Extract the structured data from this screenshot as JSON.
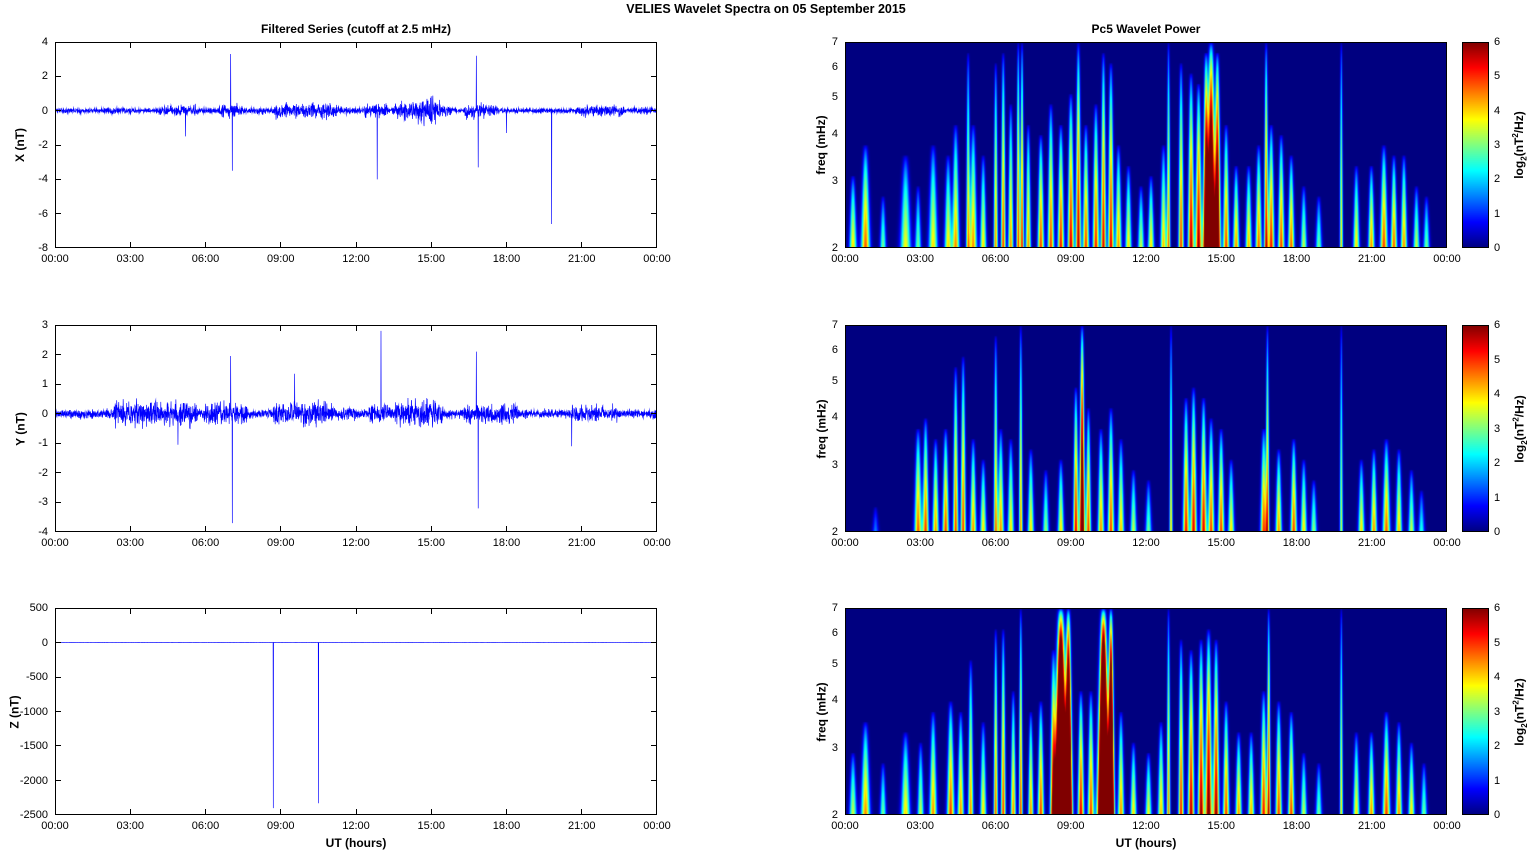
{
  "figure_title": "VELIES Wavelet Spectra on 05 September 2015",
  "x_axis": {
    "label": "UT (hours)",
    "ticks": [
      "00:00",
      "03:00",
      "06:00",
      "09:00",
      "12:00",
      "15:00",
      "18:00",
      "21:00",
      "00:00"
    ],
    "range_hours": [
      0,
      24
    ]
  },
  "line_color": "#0000FF",
  "colorbar": {
    "ticks": [
      0,
      1,
      2,
      3,
      4,
      5,
      6
    ],
    "clim": [
      0,
      6
    ],
    "label_plain": "log2(nT2/Hz)",
    "label_parts": {
      "prefix": "log",
      "sub": "2",
      "mid": "(nT",
      "sup": "2",
      "suffix": "/Hz)"
    }
  },
  "chart_data": [
    {
      "id": "x-filtered-series",
      "type": "line",
      "title": "Filtered Series (cutoff at 2.5 mHz)",
      "ylabel": "X (nT)",
      "ylim": [
        -8,
        4
      ],
      "yticks": [
        4,
        2,
        0,
        -2,
        -4,
        -6,
        -8
      ],
      "baseline_noise": 0.06,
      "burst_format": "[t_start_h, t_end_h, sigma_nT]",
      "noise_bursts": [
        [
          2.0,
          3.0,
          0.08
        ],
        [
          4.2,
          5.6,
          0.14
        ],
        [
          6.6,
          7.4,
          0.18
        ],
        [
          7.8,
          8.4,
          0.1
        ],
        [
          8.8,
          11.2,
          0.2
        ],
        [
          11.4,
          12.2,
          0.1
        ],
        [
          12.4,
          13.2,
          0.18
        ],
        [
          13.6,
          14.4,
          0.25
        ],
        [
          14.4,
          15.3,
          0.4
        ],
        [
          15.3,
          15.8,
          0.15
        ],
        [
          16.4,
          17.6,
          0.2
        ],
        [
          20.8,
          22.6,
          0.16
        ],
        [
          23.0,
          23.8,
          0.1
        ]
      ],
      "spike_format": "[t_hours, nT]",
      "spikes": [
        [
          5.2,
          -1.5
        ],
        [
          7.0,
          3.3
        ],
        [
          7.07,
          -3.5
        ],
        [
          12.85,
          -4.0
        ],
        [
          16.8,
          3.2
        ],
        [
          16.87,
          -3.3
        ],
        [
          18.0,
          -1.3
        ],
        [
          19.8,
          -6.6
        ]
      ]
    },
    {
      "id": "y-filtered-series",
      "type": "line",
      "ylabel": "Y (nT)",
      "ylim": [
        -4,
        3
      ],
      "yticks": [
        3,
        2,
        1,
        0,
        -1,
        -2,
        -3,
        -4
      ],
      "baseline_noise": 0.07,
      "noise_bursts": [
        [
          2.4,
          5.6,
          0.2
        ],
        [
          6.0,
          7.6,
          0.18
        ],
        [
          8.8,
          11.0,
          0.2
        ],
        [
          11.0,
          12.0,
          0.1
        ],
        [
          12.6,
          13.4,
          0.15
        ],
        [
          13.6,
          15.4,
          0.22
        ],
        [
          16.4,
          18.4,
          0.16
        ],
        [
          20.6,
          22.4,
          0.14
        ]
      ],
      "spikes": [
        [
          4.9,
          -1.05
        ],
        [
          7.0,
          1.95
        ],
        [
          7.07,
          -3.7
        ],
        [
          9.55,
          1.35
        ],
        [
          13.0,
          2.8
        ],
        [
          16.8,
          2.1
        ],
        [
          16.87,
          -3.2
        ],
        [
          20.6,
          -1.1
        ]
      ]
    },
    {
      "id": "z-filtered-series",
      "type": "line",
      "ylabel": "Z (nT)",
      "ylim": [
        -2500,
        500
      ],
      "yticks": [
        500,
        0,
        -500,
        -1000,
        -1500,
        -2000,
        -2500
      ],
      "baseline_noise": 0.4,
      "noise_bursts": [],
      "spikes": [
        [
          8.7,
          -2400
        ],
        [
          10.5,
          -2330
        ]
      ]
    },
    {
      "id": "x-wavelet-power",
      "type": "heatmap",
      "title": "Pc5 Wavelet Power",
      "ylabel": "freq (mHz)",
      "f_mhz": [
        2,
        7
      ],
      "yscale": "log",
      "yticks": [
        7,
        6,
        5,
        4,
        3,
        2
      ],
      "clim": [
        0,
        6
      ],
      "plume_format": "[t_hours, height_frac_of_log_freq_axis, peak_log2_power, width_hours]",
      "plumes": [
        [
          0.3,
          0.35,
          4,
          0.12
        ],
        [
          0.8,
          0.5,
          4.8,
          0.15
        ],
        [
          1.5,
          0.25,
          3,
          0.1
        ],
        [
          2.4,
          0.45,
          3.8,
          0.18
        ],
        [
          2.9,
          0.3,
          3,
          0.1
        ],
        [
          3.5,
          0.5,
          4,
          0.15
        ],
        [
          4.1,
          0.45,
          4,
          0.12
        ],
        [
          4.4,
          0.6,
          4.5,
          0.12
        ],
        [
          4.9,
          0.95,
          4.2,
          0.06
        ],
        [
          5.1,
          0.6,
          4.5,
          0.12
        ],
        [
          5.5,
          0.45,
          4,
          0.1
        ],
        [
          6.0,
          0.9,
          4.5,
          0.06
        ],
        [
          6.3,
          0.95,
          5,
          0.07
        ],
        [
          6.6,
          0.7,
          4.5,
          0.08
        ],
        [
          6.9,
          1.0,
          5,
          0.05
        ],
        [
          7.05,
          1.0,
          5.2,
          0.05
        ],
        [
          7.3,
          0.6,
          4.5,
          0.08
        ],
        [
          7.8,
          0.55,
          5,
          0.1
        ],
        [
          8.2,
          0.7,
          5,
          0.1
        ],
        [
          8.6,
          0.6,
          5.3,
          0.1
        ],
        [
          9.0,
          0.75,
          5.6,
          0.1
        ],
        [
          9.3,
          1.0,
          5.8,
          0.08
        ],
        [
          9.6,
          0.6,
          5,
          0.1
        ],
        [
          10.0,
          0.7,
          5.2,
          0.1
        ],
        [
          10.3,
          0.95,
          5.5,
          0.08
        ],
        [
          10.6,
          0.9,
          5.5,
          0.09
        ],
        [
          10.9,
          0.5,
          4.5,
          0.1
        ],
        [
          11.3,
          0.4,
          4,
          0.1
        ],
        [
          11.8,
          0.3,
          3.5,
          0.1
        ],
        [
          12.2,
          0.35,
          4,
          0.1
        ],
        [
          12.7,
          0.5,
          4.2,
          0.1
        ],
        [
          12.9,
          1.0,
          4.5,
          0.05
        ],
        [
          13.4,
          0.9,
          5,
          0.08
        ],
        [
          13.8,
          0.85,
          5.8,
          0.1
        ],
        [
          14.1,
          0.8,
          6,
          0.1
        ],
        [
          14.4,
          0.95,
          8,
          0.1
        ],
        [
          14.6,
          1.0,
          10,
          0.15
        ],
        [
          14.85,
          0.95,
          8,
          0.1
        ],
        [
          15.2,
          0.6,
          5,
          0.1
        ],
        [
          15.6,
          0.4,
          4.5,
          0.1
        ],
        [
          16.1,
          0.4,
          4.3,
          0.1
        ],
        [
          16.5,
          0.5,
          4.8,
          0.1
        ],
        [
          16.8,
          1.0,
          5.5,
          0.06
        ],
        [
          17.0,
          0.6,
          5.3,
          0.1
        ],
        [
          17.4,
          0.55,
          5,
          0.1
        ],
        [
          17.8,
          0.45,
          4.8,
          0.1
        ],
        [
          18.3,
          0.3,
          3.5,
          0.1
        ],
        [
          18.9,
          0.25,
          3,
          0.1
        ],
        [
          19.8,
          1.0,
          4,
          0.04
        ],
        [
          20.4,
          0.4,
          4,
          0.1
        ],
        [
          21.0,
          0.4,
          4.5,
          0.1
        ],
        [
          21.5,
          0.5,
          5,
          0.12
        ],
        [
          21.9,
          0.45,
          4.8,
          0.1
        ],
        [
          22.3,
          0.45,
          4.5,
          0.1
        ],
        [
          22.8,
          0.3,
          3.5,
          0.1
        ],
        [
          23.2,
          0.25,
          3,
          0.1
        ]
      ]
    },
    {
      "id": "y-wavelet-power",
      "type": "heatmap",
      "ylabel": "freq (mHz)",
      "f_mhz": [
        2,
        7
      ],
      "yscale": "log",
      "yticks": [
        7,
        6,
        5,
        4,
        3,
        2
      ],
      "clim": [
        0,
        6
      ],
      "plumes": [
        [
          1.2,
          0.12,
          1.5,
          0.1
        ],
        [
          2.9,
          0.5,
          4.8,
          0.12
        ],
        [
          3.2,
          0.55,
          5,
          0.1
        ],
        [
          3.6,
          0.45,
          4.5,
          0.1
        ],
        [
          4.0,
          0.5,
          5,
          0.1
        ],
        [
          4.4,
          0.8,
          5,
          0.08
        ],
        [
          4.7,
          0.85,
          5,
          0.08
        ],
        [
          5.1,
          0.45,
          4.5,
          0.1
        ],
        [
          5.5,
          0.35,
          4,
          0.1
        ],
        [
          6.0,
          0.95,
          4.5,
          0.06
        ],
        [
          6.2,
          0.5,
          4.5,
          0.1
        ],
        [
          6.6,
          0.45,
          4,
          0.1
        ],
        [
          7.0,
          1.0,
          4.5,
          0.05
        ],
        [
          7.4,
          0.4,
          4,
          0.1
        ],
        [
          8.0,
          0.3,
          3.2,
          0.1
        ],
        [
          8.6,
          0.35,
          4,
          0.1
        ],
        [
          9.2,
          0.7,
          5.5,
          0.08
        ],
        [
          9.45,
          1.0,
          8,
          0.08
        ],
        [
          9.7,
          0.6,
          5,
          0.08
        ],
        [
          10.2,
          0.5,
          4.5,
          0.1
        ],
        [
          10.6,
          0.6,
          5,
          0.1
        ],
        [
          11.0,
          0.45,
          4.2,
          0.1
        ],
        [
          11.5,
          0.3,
          3.5,
          0.1
        ],
        [
          12.1,
          0.25,
          3,
          0.1
        ],
        [
          13.0,
          1.0,
          4,
          0.04
        ],
        [
          13.6,
          0.65,
          5.3,
          0.1
        ],
        [
          13.9,
          0.7,
          5.5,
          0.1
        ],
        [
          14.3,
          0.65,
          5.5,
          0.1
        ],
        [
          14.6,
          0.55,
          5,
          0.1
        ],
        [
          15.0,
          0.5,
          5,
          0.1
        ],
        [
          15.4,
          0.35,
          4,
          0.1
        ],
        [
          16.7,
          0.5,
          5,
          0.1
        ],
        [
          16.85,
          1.0,
          4.8,
          0.05
        ],
        [
          17.3,
          0.4,
          4.5,
          0.1
        ],
        [
          17.9,
          0.45,
          5,
          0.1
        ],
        [
          18.3,
          0.35,
          4,
          0.1
        ],
        [
          18.7,
          0.25,
          3.2,
          0.1
        ],
        [
          19.8,
          1.0,
          3.5,
          0.04
        ],
        [
          20.6,
          0.35,
          4,
          0.1
        ],
        [
          21.1,
          0.4,
          4.5,
          0.1
        ],
        [
          21.6,
          0.45,
          4.8,
          0.12
        ],
        [
          22.1,
          0.4,
          4.2,
          0.1
        ],
        [
          22.6,
          0.3,
          3.5,
          0.1
        ],
        [
          23.0,
          0.2,
          2.5,
          0.1
        ]
      ]
    },
    {
      "id": "z-wavelet-power",
      "type": "heatmap",
      "ylabel": "freq (mHz)",
      "f_mhz": [
        2,
        7
      ],
      "yscale": "log",
      "yticks": [
        7,
        6,
        5,
        4,
        3,
        2
      ],
      "clim": [
        0,
        6
      ],
      "plumes": [
        [
          0.3,
          0.3,
          3.5,
          0.12
        ],
        [
          0.8,
          0.45,
          4.5,
          0.15
        ],
        [
          1.5,
          0.25,
          3,
          0.1
        ],
        [
          2.4,
          0.4,
          4,
          0.15
        ],
        [
          3.0,
          0.35,
          3.5,
          0.1
        ],
        [
          3.5,
          0.5,
          4.5,
          0.12
        ],
        [
          4.2,
          0.55,
          5,
          0.12
        ],
        [
          4.6,
          0.5,
          4.5,
          0.1
        ],
        [
          5.0,
          0.75,
          4.5,
          0.08
        ],
        [
          5.5,
          0.45,
          4,
          0.1
        ],
        [
          6.0,
          0.9,
          4.8,
          0.06
        ],
        [
          6.3,
          0.9,
          5,
          0.07
        ],
        [
          6.7,
          0.6,
          4.5,
          0.08
        ],
        [
          7.0,
          1.0,
          5,
          0.05
        ],
        [
          7.4,
          0.5,
          4.5,
          0.08
        ],
        [
          7.8,
          0.55,
          5,
          0.1
        ],
        [
          8.3,
          0.8,
          5.5,
          0.1
        ],
        [
          8.6,
          1.0,
          16,
          0.2
        ],
        [
          8.9,
          1.0,
          12,
          0.12
        ],
        [
          9.4,
          0.6,
          5.5,
          0.1
        ],
        [
          9.8,
          0.6,
          5,
          0.1
        ],
        [
          10.3,
          1.0,
          16,
          0.18
        ],
        [
          10.6,
          1.0,
          12,
          0.1
        ],
        [
          11.0,
          0.5,
          4.5,
          0.1
        ],
        [
          11.5,
          0.35,
          4,
          0.1
        ],
        [
          12.1,
          0.3,
          3.8,
          0.1
        ],
        [
          12.6,
          0.45,
          4.2,
          0.1
        ],
        [
          12.9,
          1.0,
          4.5,
          0.05
        ],
        [
          13.4,
          0.85,
          5.2,
          0.08
        ],
        [
          13.8,
          0.8,
          5.8,
          0.1
        ],
        [
          14.2,
          0.85,
          6,
          0.1
        ],
        [
          14.5,
          0.9,
          6.5,
          0.11
        ],
        [
          14.8,
          0.85,
          6,
          0.1
        ],
        [
          15.2,
          0.55,
          5,
          0.1
        ],
        [
          15.7,
          0.4,
          4.5,
          0.1
        ],
        [
          16.2,
          0.4,
          4.3,
          0.1
        ],
        [
          16.7,
          0.6,
          5.3,
          0.1
        ],
        [
          16.9,
          1.0,
          5.5,
          0.05
        ],
        [
          17.3,
          0.55,
          5,
          0.1
        ],
        [
          17.8,
          0.5,
          5,
          0.1
        ],
        [
          18.3,
          0.3,
          3.5,
          0.1
        ],
        [
          18.9,
          0.25,
          3,
          0.1
        ],
        [
          19.8,
          1.0,
          4,
          0.04
        ],
        [
          20.4,
          0.4,
          4,
          0.1
        ],
        [
          21.0,
          0.4,
          4.5,
          0.1
        ],
        [
          21.6,
          0.5,
          5,
          0.12
        ],
        [
          22.1,
          0.45,
          4.5,
          0.1
        ],
        [
          22.6,
          0.35,
          4,
          0.1
        ],
        [
          23.1,
          0.25,
          3,
          0.1
        ]
      ]
    }
  ]
}
